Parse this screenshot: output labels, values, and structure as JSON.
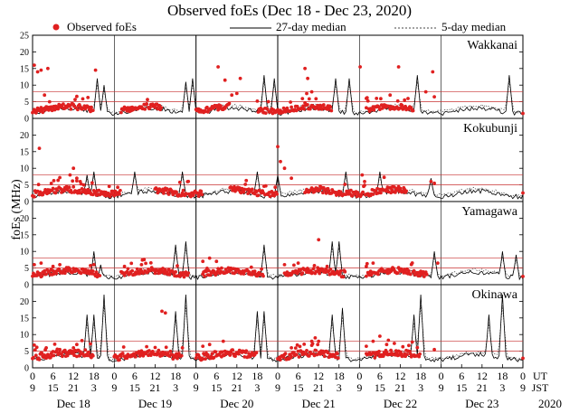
{
  "chart_data": {
    "type": "scatter",
    "title": "Observed foEs (Dec 18 - Dec 23, 2020)",
    "ylabel": "foEs (MHz)",
    "ylim": [
      0,
      25
    ],
    "yticks": [
      0,
      5,
      10,
      15,
      20,
      25
    ],
    "xlim_hours": [
      0,
      144
    ],
    "legend": {
      "observed": "Observed foEs",
      "median27": "27-day median",
      "median5": "5-day median"
    },
    "colors": {
      "observed": "#e02020",
      "threshold": "#c83232",
      "median27": "#000000",
      "median5": "#444444"
    },
    "x_axis": {
      "ut_label": "UT",
      "jst_label": "JST",
      "year_label": "2020",
      "ut_ticks": [
        "0",
        "6",
        "12",
        "18",
        "0",
        "6",
        "12",
        "18",
        "0",
        "6",
        "12",
        "18",
        "0",
        "6",
        "12",
        "18",
        "0",
        "6",
        "12",
        "18",
        "0",
        "6",
        "12",
        "18",
        "0"
      ],
      "jst_ticks": [
        "9",
        "15",
        "21",
        "3",
        "9",
        "15",
        "21",
        "3",
        "9",
        "15",
        "21",
        "3",
        "9",
        "15",
        "21",
        "3",
        "9",
        "15",
        "21",
        "3",
        "9",
        "15",
        "21",
        "3",
        "9"
      ],
      "day_labels": [
        "Dec 18",
        "Dec 19",
        "Dec 20",
        "Dec 21",
        "Dec 22",
        "Dec 23"
      ]
    },
    "stations": [
      {
        "name": "Wakkanai",
        "thresholds": [
          5,
          8
        ],
        "base": 2.3,
        "spread": 0.8,
        "gaps": [
          [
            18,
            26
          ],
          [
            38,
            48
          ],
          [
            58,
            66
          ],
          [
            88,
            98
          ],
          [
            112,
            144
          ]
        ],
        "spikes": [
          [
            19,
            12
          ],
          [
            21,
            10
          ],
          [
            45,
            11
          ],
          [
            47,
            12
          ],
          [
            68,
            13
          ],
          [
            71,
            12
          ],
          [
            89,
            12
          ],
          [
            93,
            12
          ],
          [
            113,
            13
          ],
          [
            140,
            13
          ]
        ],
        "outliers": [
          [
            0.5,
            16
          ],
          [
            1.5,
            14
          ],
          [
            2.5,
            14.5
          ],
          [
            4.5,
            15
          ],
          [
            3.5,
            7
          ],
          [
            5,
            5
          ],
          [
            18.5,
            14.5
          ],
          [
            54.5,
            15.5
          ],
          [
            56.5,
            11.5
          ],
          [
            61,
            12
          ],
          [
            58.5,
            7
          ],
          [
            60,
            7.5
          ],
          [
            80,
            15
          ],
          [
            80.8,
            12
          ],
          [
            82,
            8
          ],
          [
            96.2,
            15.5
          ],
          [
            98,
            6
          ],
          [
            101,
            6
          ],
          [
            105,
            7
          ],
          [
            107.5,
            15.5
          ],
          [
            117.5,
            14
          ],
          [
            115.5,
            8
          ],
          [
            118,
            6.5
          ]
        ]
      },
      {
        "name": "Kokubunji",
        "thresholds": [
          5,
          8
        ],
        "base": 2.3,
        "spread": 0.9,
        "gaps": [
          [
            26,
            36
          ],
          [
            50,
            58
          ],
          [
            72,
            80
          ],
          [
            110,
            144
          ]
        ],
        "spikes": [
          [
            16,
            8
          ],
          [
            18,
            9
          ],
          [
            30,
            9
          ],
          [
            44,
            9
          ],
          [
            66,
            9
          ],
          [
            72,
            8
          ],
          [
            92,
            9
          ],
          [
            102,
            9
          ],
          [
            117,
            7
          ]
        ],
        "outliers": [
          [
            2,
            16
          ],
          [
            12,
            10
          ],
          [
            11,
            8
          ],
          [
            13,
            7
          ],
          [
            14,
            6
          ],
          [
            15,
            5
          ],
          [
            72,
            16.5
          ],
          [
            72.8,
            12
          ],
          [
            74,
            10
          ],
          [
            76,
            7
          ],
          [
            96.8,
            8
          ],
          [
            97.5,
            6
          ],
          [
            117,
            6
          ],
          [
            118,
            5.5
          ]
        ]
      },
      {
        "name": "Yamagawa",
        "thresholds": [
          5,
          8
        ],
        "base": 3.0,
        "spread": 0.9,
        "gaps": [
          [
            20,
            26
          ],
          [
            46,
            50
          ],
          [
            68,
            74
          ],
          [
            92,
            98
          ],
          [
            116,
            144
          ]
        ],
        "spikes": [
          [
            18,
            10
          ],
          [
            20,
            6
          ],
          [
            42,
            12
          ],
          [
            45,
            13
          ],
          [
            68,
            12
          ],
          [
            88,
            13
          ],
          [
            90,
            13
          ],
          [
            118,
            10
          ],
          [
            138,
            10
          ],
          [
            142,
            9
          ]
        ],
        "outliers": [
          [
            0.5,
            6
          ],
          [
            2.5,
            6.5
          ],
          [
            6,
            5.5
          ],
          [
            8,
            6
          ],
          [
            27,
            5.5
          ],
          [
            32,
            6
          ],
          [
            50,
            7
          ],
          [
            52,
            8
          ],
          [
            54,
            7
          ],
          [
            74,
            6
          ],
          [
            78,
            6.5
          ],
          [
            84,
            13.5
          ],
          [
            98,
            5.5
          ],
          [
            100,
            6.5
          ],
          [
            119,
            6.5
          ]
        ]
      },
      {
        "name": "Okinawa",
        "thresholds": [
          5,
          8
        ],
        "base": 3.2,
        "spread": 1.0,
        "gaps": [
          [
            18,
            24
          ],
          [
            44,
            48
          ],
          [
            66,
            72
          ],
          [
            90,
            98
          ],
          [
            114,
            144
          ]
        ],
        "spikes": [
          [
            16,
            16
          ],
          [
            18,
            16
          ],
          [
            21,
            22
          ],
          [
            42,
            17
          ],
          [
            45,
            22
          ],
          [
            66,
            17
          ],
          [
            68,
            17
          ],
          [
            88,
            16
          ],
          [
            91,
            18
          ],
          [
            112,
            16
          ],
          [
            114,
            22
          ],
          [
            134,
            16
          ],
          [
            138,
            22
          ]
        ],
        "outliers": [
          [
            4,
            6
          ],
          [
            8,
            5.5
          ],
          [
            12,
            6
          ],
          [
            13,
            7
          ],
          [
            38,
            17
          ],
          [
            39,
            16.5
          ],
          [
            44,
            6
          ],
          [
            50,
            6.5
          ],
          [
            52,
            7
          ],
          [
            56,
            8
          ],
          [
            76,
            6
          ],
          [
            82,
            8
          ],
          [
            83,
            9
          ],
          [
            84,
            8
          ],
          [
            98,
            6.5
          ],
          [
            100,
            8
          ],
          [
            102,
            9.5
          ],
          [
            104,
            7
          ],
          [
            118,
            5.5
          ]
        ]
      }
    ]
  }
}
